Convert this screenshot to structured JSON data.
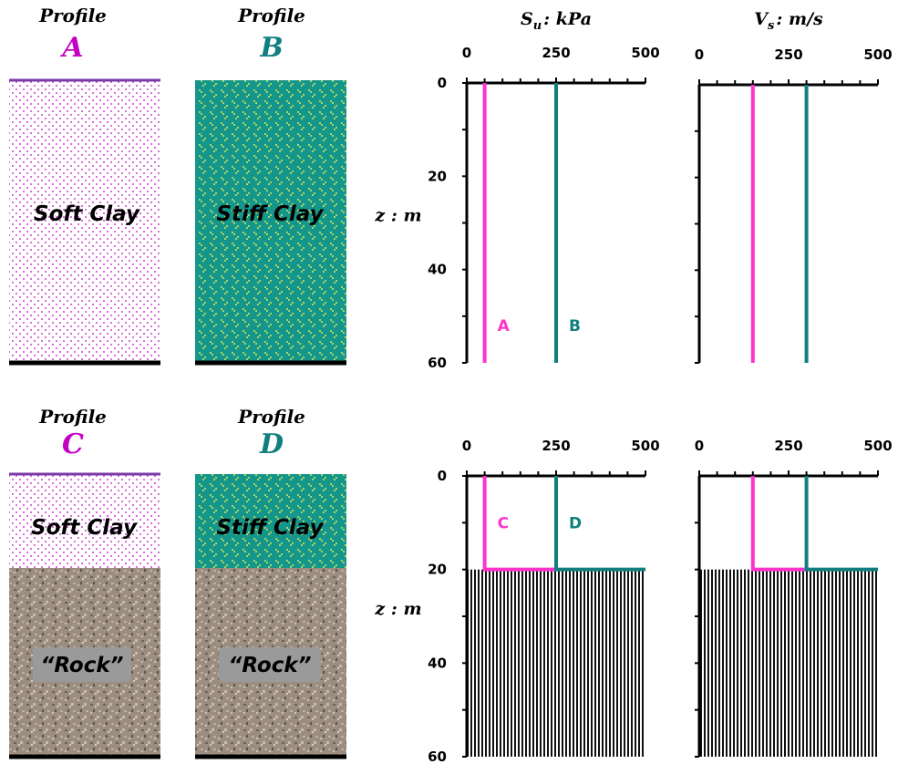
{
  "profiles": [
    {
      "heading": "Profile",
      "letter": "A",
      "letter_color": "#c400c4",
      "layers": [
        "Soft Clay"
      ]
    },
    {
      "heading": "Profile",
      "letter": "B",
      "letter_color": "#127f7f",
      "layers": [
        "Stiff Clay"
      ]
    },
    {
      "heading": "Profile",
      "letter": "C",
      "letter_color": "#c400c4",
      "layers": [
        "Soft Clay",
        "“Rock”"
      ]
    },
    {
      "heading": "Profile",
      "letter": "D",
      "letter_color": "#127f7f",
      "layers": [
        "Stiff Clay",
        "“Rock”"
      ]
    }
  ],
  "chart_data": [
    {
      "type": "line",
      "xlabel": {
        "symbol": "S",
        "sub": "u",
        "unit": ": kPa"
      },
      "ylabel": "z : m",
      "xlim": [
        0,
        500
      ],
      "xticks": [
        0,
        250,
        500
      ],
      "xminorticks": [
        50,
        100,
        150,
        200,
        300,
        350,
        400,
        450
      ],
      "ylim": [
        0,
        60
      ],
      "yticks": [
        0,
        20,
        40,
        60
      ],
      "yminorticks": [
        10,
        30,
        50
      ],
      "series": [
        {
          "name": "A",
          "color": "#ff33cc",
          "x": [
            50,
            50
          ],
          "y": [
            0,
            60
          ]
        },
        {
          "name": "B",
          "color": "#127f7f",
          "x": [
            250,
            250
          ],
          "y": [
            0,
            60
          ]
        }
      ]
    },
    {
      "type": "line",
      "xlabel": {
        "symbol": "V",
        "sub": "s",
        "unit": ": m/s"
      },
      "xlim": [
        0,
        500
      ],
      "xticks": [
        0,
        250,
        500
      ],
      "xminorticks": [
        50,
        100,
        150,
        200,
        300,
        350,
        400,
        450
      ],
      "ylim": [
        0,
        60
      ],
      "yminorticks": [
        10,
        20,
        30,
        40,
        50,
        60
      ],
      "series": [
        {
          "color": "#ff33cc",
          "x": [
            150,
            150
          ],
          "y": [
            0,
            60
          ]
        },
        {
          "color": "#127f7f",
          "x": [
            300,
            300
          ],
          "y": [
            0,
            60
          ]
        }
      ]
    },
    {
      "type": "line",
      "ylabel": "z : m",
      "rock_top": 20,
      "xlim": [
        0,
        500
      ],
      "xticks": [
        0,
        250,
        500
      ],
      "xminorticks": [
        50,
        100,
        150,
        200,
        300,
        350,
        400,
        450
      ],
      "ylim": [
        0,
        60
      ],
      "yticks": [
        0,
        20,
        40,
        60
      ],
      "yminorticks": [
        10,
        30,
        50
      ],
      "series": [
        {
          "name": "C",
          "color": "#ff33cc",
          "x": [
            50,
            50,
            250
          ],
          "y": [
            0,
            20,
            20
          ]
        },
        {
          "name": "D",
          "color": "#127f7f",
          "x": [
            250,
            250,
            500
          ],
          "y": [
            0,
            20,
            20
          ]
        }
      ]
    },
    {
      "type": "line",
      "rock_top": 20,
      "xlim": [
        0,
        500
      ],
      "xticks": [
        0,
        250,
        500
      ],
      "xminorticks": [
        50,
        100,
        150,
        200,
        300,
        350,
        400,
        450
      ],
      "ylim": [
        0,
        60
      ],
      "yminorticks": [
        10,
        20,
        30,
        40,
        50,
        60
      ],
      "series": [
        {
          "color": "#ff33cc",
          "x": [
            150,
            150,
            300
          ],
          "y": [
            0,
            20,
            20
          ]
        },
        {
          "color": "#127f7f",
          "x": [
            300,
            300,
            500
          ],
          "y": [
            0,
            20,
            20
          ]
        }
      ]
    }
  ]
}
